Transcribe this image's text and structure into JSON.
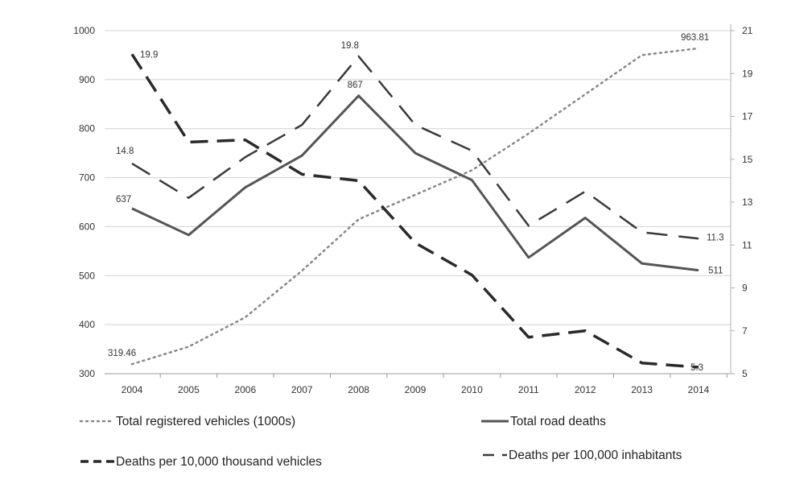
{
  "chart_data": {
    "type": "line",
    "categories": [
      "2004",
      "2005",
      "2006",
      "2007",
      "2008",
      "2009",
      "2010",
      "2011",
      "2012",
      "2013",
      "2014"
    ],
    "left_axis": {
      "ylim": [
        300,
        1000
      ],
      "ticks": [
        "300",
        "400",
        "500",
        "600",
        "700",
        "800",
        "900",
        "1000"
      ]
    },
    "right_axis": {
      "ylim": [
        5,
        21
      ],
      "ticks": [
        "5",
        "7",
        "9",
        "11",
        "13",
        "15",
        "17",
        "19",
        "21"
      ]
    },
    "grid": "horizontal",
    "legend_position": "bottom",
    "series": [
      {
        "name": "Total registered vehicles (1000s)",
        "axis": "left",
        "style": "dotted",
        "values": [
          319.46,
          355,
          415,
          510,
          615,
          665,
          715,
          790,
          870,
          950,
          963.81
        ]
      },
      {
        "name": "Total road deaths",
        "axis": "left",
        "style": "solid",
        "values": [
          637,
          583,
          680,
          745,
          867,
          750,
          695,
          537,
          618,
          525,
          511
        ]
      },
      {
        "name": "Deaths per 10,000 thousand vehicles",
        "axis": "right",
        "style": "long-dash",
        "values": [
          19.9,
          15.8,
          15.9,
          14.3,
          14.0,
          11.1,
          9.6,
          6.7,
          7.0,
          5.5,
          5.3
        ]
      },
      {
        "name": "Deaths per 100,000 inhabitants",
        "axis": "right",
        "style": "medium-dash",
        "values": [
          14.8,
          13.2,
          15.1,
          16.6,
          19.8,
          16.6,
          15.4,
          11.9,
          13.5,
          11.6,
          11.3
        ]
      }
    ],
    "data_labels": [
      {
        "series": 0,
        "index": 0,
        "text": "319.46"
      },
      {
        "series": 0,
        "index": 10,
        "text": "963.81"
      },
      {
        "series": 1,
        "index": 0,
        "text": "637"
      },
      {
        "series": 1,
        "index": 4,
        "text": "867"
      },
      {
        "series": 1,
        "index": 10,
        "text": "511"
      },
      {
        "series": 2,
        "index": 0,
        "text": "19.9"
      },
      {
        "series": 2,
        "index": 10,
        "text": "5.3"
      },
      {
        "series": 3,
        "index": 0,
        "text": "14.8"
      },
      {
        "series": 3,
        "index": 4,
        "text": "19.8"
      },
      {
        "series": 3,
        "index": 10,
        "text": "11.3"
      }
    ]
  }
}
